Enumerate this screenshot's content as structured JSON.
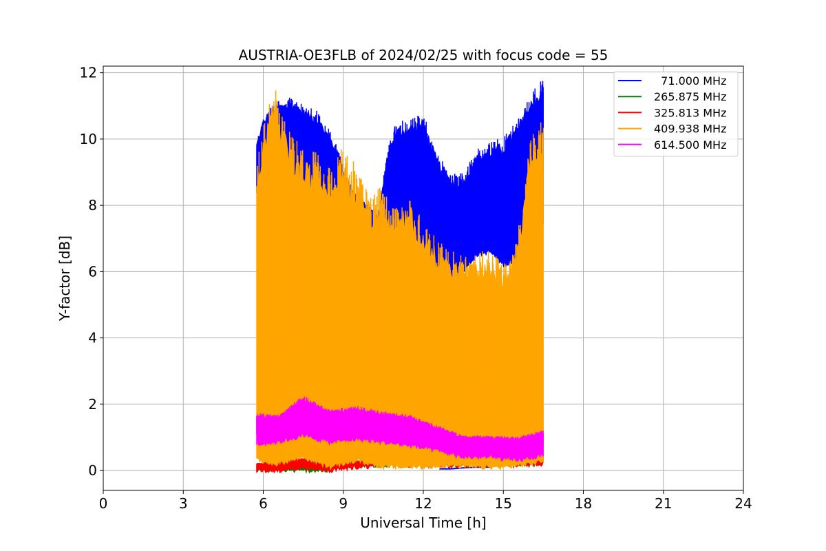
{
  "chart_data": {
    "type": "line",
    "title": "AUSTRIA-OE3FLB of 2024/02/25 with focus code = 55",
    "xlabel": "Universal Time [h]",
    "ylabel": "Y-factor [dB]",
    "xlim": [
      0,
      24
    ],
    "ylim": [
      -0.6,
      12.2
    ],
    "xticks": [
      "0",
      "3",
      "6",
      "9",
      "12",
      "15",
      "18",
      "21",
      "24"
    ],
    "yticks": [
      "0",
      "2",
      "4",
      "6",
      "8",
      "10",
      "12"
    ],
    "grid": true,
    "legend_position": "top-right",
    "series": [
      {
        "name": "  71.000 MHz",
        "color": "#0000ff",
        "low": [
          [
            5.75,
            8.4
          ],
          [
            6.0,
            8.8
          ],
          [
            6.5,
            8.5
          ],
          [
            7.0,
            8.3
          ],
          [
            7.5,
            8.4
          ],
          [
            8.0,
            8.0
          ],
          [
            8.5,
            7.6
          ],
          [
            8.8,
            7.3
          ],
          [
            9.0,
            8.0
          ],
          [
            9.5,
            7.5
          ],
          [
            10.0,
            7.0
          ],
          [
            10.3,
            6.8
          ],
          [
            10.7,
            7.3
          ],
          [
            11.0,
            7.3
          ],
          [
            11.5,
            7.2
          ],
          [
            12.0,
            6.6
          ],
          [
            12.5,
            6.1
          ],
          [
            13.0,
            5.8
          ],
          [
            13.5,
            6.0
          ],
          [
            14.0,
            6.5
          ],
          [
            14.5,
            6.6
          ],
          [
            15.0,
            6.2
          ],
          [
            15.5,
            6.3
          ],
          [
            16.0,
            6.8
          ],
          [
            16.5,
            7.5
          ]
        ],
        "high": [
          [
            5.75,
            9.8
          ],
          [
            6.0,
            10.5
          ],
          [
            6.5,
            10.9
          ],
          [
            7.0,
            11.0
          ],
          [
            7.5,
            10.8
          ],
          [
            8.0,
            10.6
          ],
          [
            8.5,
            10.0
          ],
          [
            8.8,
            9.5
          ],
          [
            9.0,
            9.0
          ],
          [
            9.5,
            8.2
          ],
          [
            10.0,
            7.9
          ],
          [
            10.3,
            7.6
          ],
          [
            10.7,
            9.7
          ],
          [
            11.0,
            10.2
          ],
          [
            11.5,
            10.3
          ],
          [
            12.0,
            10.4
          ],
          [
            12.5,
            9.3
          ],
          [
            13.0,
            8.7
          ],
          [
            13.5,
            8.7
          ],
          [
            14.0,
            9.4
          ],
          [
            14.5,
            9.6
          ],
          [
            15.0,
            9.7
          ],
          [
            15.5,
            10.2
          ],
          [
            16.0,
            10.9
          ],
          [
            16.5,
            11.5
          ]
        ],
        "floor": [
          [
            12.6,
            0.05
          ],
          [
            13.0,
            0.05
          ],
          [
            13.5,
            0.08
          ],
          [
            14.0,
            0.1
          ],
          [
            14.5,
            0.1
          ]
        ]
      },
      {
        "name": "265.875 MHz",
        "color": "#008000",
        "low": [
          [
            5.75,
            0.0
          ],
          [
            8.5,
            0.0
          ],
          [
            9.0,
            0.1
          ],
          [
            10.0,
            0.15
          ],
          [
            12.0,
            0.2
          ],
          [
            14.0,
            0.2
          ],
          [
            16.5,
            0.2
          ]
        ],
        "high": [
          [
            5.75,
            0.15
          ],
          [
            8.5,
            0.1
          ],
          [
            9.0,
            0.25
          ],
          [
            10.0,
            0.3
          ],
          [
            12.0,
            0.3
          ],
          [
            14.0,
            0.3
          ],
          [
            16.5,
            0.35
          ]
        ]
      },
      {
        "name": "325.813 MHz",
        "color": "#ff0000",
        "low": [
          [
            5.75,
            0.0
          ],
          [
            6.5,
            0.0
          ],
          [
            7.5,
            0.05
          ],
          [
            8.5,
            0.0
          ],
          [
            9.5,
            0.1
          ],
          [
            10.5,
            0.15
          ],
          [
            12.0,
            0.15
          ],
          [
            14.0,
            0.15
          ],
          [
            15.5,
            0.15
          ],
          [
            16.5,
            0.2
          ]
        ],
        "high": [
          [
            5.75,
            0.2
          ],
          [
            6.5,
            0.3
          ],
          [
            7.5,
            0.35
          ],
          [
            8.5,
            0.15
          ],
          [
            9.5,
            0.3
          ],
          [
            10.5,
            0.25
          ],
          [
            12.0,
            0.25
          ],
          [
            14.0,
            0.25
          ],
          [
            15.5,
            0.3
          ],
          [
            16.5,
            0.45
          ]
        ]
      },
      {
        "name": "409.938 MHz",
        "color": "#ffa500",
        "low": [
          [
            5.75,
            0.3
          ],
          [
            6.5,
            0.2
          ],
          [
            7.5,
            0.4
          ],
          [
            8.5,
            0.1
          ],
          [
            9.5,
            0.3
          ],
          [
            10.5,
            0.1
          ],
          [
            12.0,
            0.1
          ],
          [
            13.0,
            0.15
          ],
          [
            14.0,
            0.1
          ],
          [
            15.0,
            0.1
          ],
          [
            16.0,
            0.2
          ],
          [
            16.5,
            0.3
          ]
        ],
        "high": [
          [
            5.75,
            8.4
          ],
          [
            6.0,
            9.5
          ],
          [
            6.4,
            10.6
          ],
          [
            7.0,
            9.3
          ],
          [
            7.5,
            8.8
          ],
          [
            8.0,
            8.8
          ],
          [
            8.5,
            8.3
          ],
          [
            9.0,
            9.0
          ],
          [
            9.5,
            8.4
          ],
          [
            10.0,
            7.6
          ],
          [
            10.5,
            7.8
          ],
          [
            11.0,
            7.2
          ],
          [
            11.5,
            7.6
          ],
          [
            12.0,
            6.8
          ],
          [
            12.5,
            6.4
          ],
          [
            13.0,
            6.0
          ],
          [
            13.5,
            6.0
          ],
          [
            14.0,
            6.0
          ],
          [
            14.5,
            6.0
          ],
          [
            15.0,
            5.7
          ],
          [
            15.5,
            6.3
          ],
          [
            16.0,
            9.0
          ],
          [
            16.5,
            10.0
          ]
        ]
      },
      {
        "name": "614.500 MHz",
        "color": "#ff00ff",
        "low": [
          [
            5.75,
            0.8
          ],
          [
            6.5,
            0.85
          ],
          [
            7.5,
            1.05
          ],
          [
            8.5,
            0.85
          ],
          [
            9.5,
            0.95
          ],
          [
            10.5,
            0.85
          ],
          [
            11.5,
            0.75
          ],
          [
            12.5,
            0.6
          ],
          [
            13.5,
            0.4
          ],
          [
            14.5,
            0.4
          ],
          [
            15.5,
            0.3
          ],
          [
            16.5,
            0.45
          ]
        ],
        "high": [
          [
            5.75,
            1.65
          ],
          [
            6.5,
            1.6
          ],
          [
            7.5,
            2.15
          ],
          [
            8.5,
            1.75
          ],
          [
            9.5,
            1.85
          ],
          [
            10.5,
            1.7
          ],
          [
            11.5,
            1.6
          ],
          [
            12.5,
            1.3
          ],
          [
            13.5,
            1.0
          ],
          [
            14.5,
            1.0
          ],
          [
            15.5,
            0.95
          ],
          [
            16.5,
            1.15
          ]
        ]
      }
    ]
  }
}
